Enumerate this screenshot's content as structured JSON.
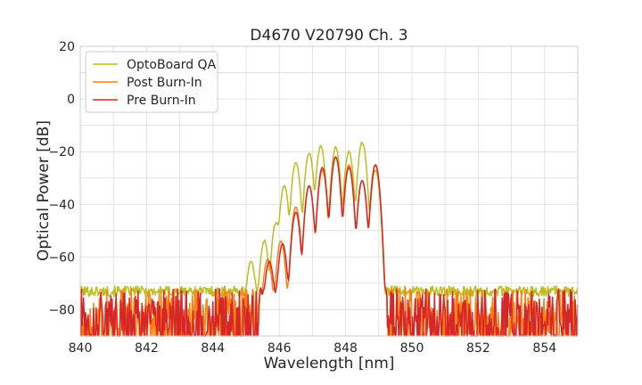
{
  "chart_data": {
    "type": "line",
    "title": "D4670 V20790 Ch. 3",
    "xlabel": "Wavelength [nm]",
    "ylabel": "Optical Power [dB]",
    "xlim": [
      840,
      855
    ],
    "ylim": [
      -90,
      20
    ],
    "xticks": [
      840,
      842,
      844,
      846,
      848,
      850,
      852,
      854
    ],
    "yticks": [
      20,
      0,
      -20,
      -40,
      -60,
      -80
    ],
    "xtick_labels": [
      "840",
      "842",
      "844",
      "846",
      "848",
      "850",
      "852",
      "854"
    ],
    "ytick_labels": [
      "20",
      "0",
      "−20",
      "−40",
      "−60",
      "−80"
    ],
    "grid": true,
    "legend_position": "top-left",
    "series": [
      {
        "name": "OptoBoard QA",
        "color": "#bcbd22",
        "noise_floor": -73,
        "peaks": [
          [
            845.15,
            -62
          ],
          [
            845.55,
            -54
          ],
          [
            845.9,
            -47
          ],
          [
            846.15,
            -33
          ],
          [
            846.5,
            -24
          ],
          [
            846.9,
            -20.5
          ],
          [
            847.25,
            -18
          ],
          [
            847.7,
            -18.5
          ],
          [
            848.1,
            -20
          ],
          [
            848.5,
            -16.5
          ],
          [
            848.9,
            -27
          ]
        ]
      },
      {
        "name": "Post Burn-In",
        "color": "#ff7f0e",
        "noise_floor": -84,
        "peaks": [
          [
            845.25,
            -67
          ],
          [
            845.65,
            -61
          ],
          [
            846.05,
            -54
          ],
          [
            846.5,
            -41
          ],
          [
            846.9,
            -33
          ],
          [
            847.3,
            -27
          ],
          [
            847.7,
            -22
          ],
          [
            848.1,
            -25
          ],
          [
            848.5,
            -31
          ],
          [
            848.9,
            -25
          ]
        ]
      },
      {
        "name": "Pre Burn-In",
        "color": "#d62728",
        "noise_floor": -84,
        "peaks": [
          [
            845.3,
            -67
          ],
          [
            845.7,
            -62
          ],
          [
            846.1,
            -55
          ],
          [
            846.5,
            -43
          ],
          [
            846.9,
            -33
          ],
          [
            847.3,
            -26
          ],
          [
            847.7,
            -22
          ],
          [
            848.1,
            -26
          ],
          [
            848.5,
            -31
          ],
          [
            848.9,
            -25
          ]
        ]
      }
    ]
  }
}
